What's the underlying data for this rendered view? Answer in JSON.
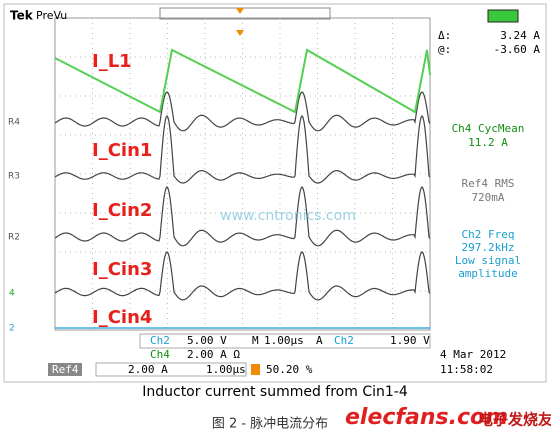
{
  "header": {
    "brand": "Tek",
    "mode": "PreVu",
    "delta_label": "Δ:",
    "delta_value": "3.24 A",
    "at_label": "@:",
    "at_value": "-3.60 A"
  },
  "trace_labels": [
    "I_L1",
    "I_Cin1",
    "I_Cin2",
    "I_Cin3",
    "I_Cin4"
  ],
  "channel_markers": [
    "R4",
    "R3",
    "R2",
    "4",
    "2"
  ],
  "watermark": "www.cntronics.com",
  "measurements": [
    {
      "title": "Ch4 CycMean",
      "lines": [
        "11.2 A"
      ]
    },
    {
      "title": "Ref4 RMS",
      "lines": [
        "720mA"
      ]
    },
    {
      "title": "Ch2 Freq",
      "lines": [
        "297.2kHz",
        "Low signal",
        "amplitude"
      ]
    }
  ],
  "status": {
    "ch2": "Ch2",
    "ch2_scale": "5.00 V",
    "m": "M",
    "timebase": "1.00µs",
    "a": "A",
    "trig_ch": "Ch2",
    "trig_level": "1.90 V",
    "ch4": "Ch4",
    "ch4_scale": "2.00 A Ω",
    "ref4": "Ref4",
    "ref4_scale": "2.00 A",
    "ref4_time": "1.00µs",
    "position": "50.20 %",
    "date": "4 Mar 2012",
    "time": "11:58:02"
  },
  "caption": "Inductor current summed from Cin1-4",
  "figure_caption": "图 2 - 脉冲电流分布",
  "logo": {
    "site": "elecfans.com",
    "name": "电子发烧友"
  }
}
